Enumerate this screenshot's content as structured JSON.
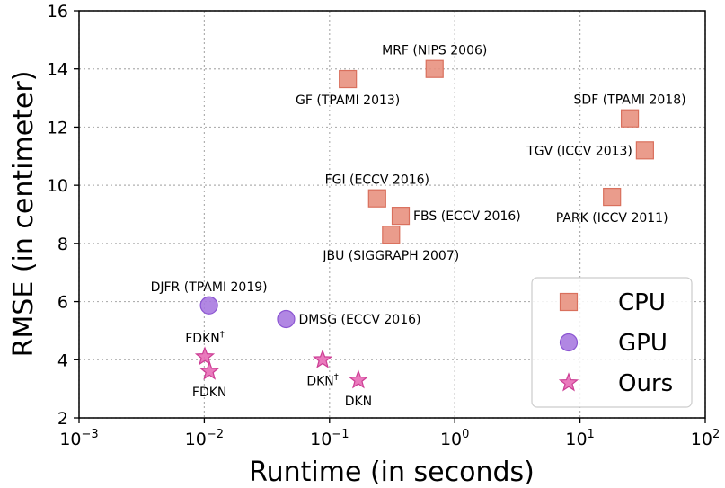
{
  "chart_data": {
    "type": "scatter",
    "title": "",
    "xlabel": "Runtime (in seconds)",
    "ylabel": "RMSE (in centimeter)",
    "xscale": "log",
    "xlim": [
      0.001,
      100
    ],
    "ylim": [
      2,
      16
    ],
    "grid": true,
    "legend_position": "bottom-right",
    "x_ticks": [
      {
        "value": 0.001,
        "base": "10",
        "exp": "−3"
      },
      {
        "value": 0.01,
        "base": "10",
        "exp": "−2"
      },
      {
        "value": 0.1,
        "base": "10",
        "exp": "−1"
      },
      {
        "value": 1,
        "base": "10",
        "exp": "0"
      },
      {
        "value": 10,
        "base": "10",
        "exp": "1"
      },
      {
        "value": 100,
        "base": "10",
        "exp": "2"
      }
    ],
    "y_ticks": [
      2,
      4,
      6,
      8,
      10,
      12,
      14,
      16
    ],
    "series": [
      {
        "name": "CPU",
        "marker": "square",
        "color": "#e8917f",
        "edge": "#d9705d",
        "points": [
          {
            "label": "MRF (NIPS 2006)",
            "x": 0.69,
            "y": 14.0,
            "label_pos": "above"
          },
          {
            "label": "GF (TPAMI 2013)",
            "x": 0.14,
            "y": 13.65,
            "label_pos": "below"
          },
          {
            "label": "SDF (TPAMI 2018)",
            "x": 25,
            "y": 12.3,
            "label_pos": "above"
          },
          {
            "label": "TGV (ICCV 2013)",
            "x": 33,
            "y": 11.2,
            "label_pos": "left"
          },
          {
            "label": "FGI (ECCV 2016)",
            "x": 0.24,
            "y": 9.55,
            "label_pos": "above"
          },
          {
            "label": "FBS (ECCV 2016)",
            "x": 0.37,
            "y": 8.95,
            "label_pos": "right"
          },
          {
            "label": "PARK (ICCV 2011)",
            "x": 18,
            "y": 9.6,
            "label_pos": "below"
          },
          {
            "label": "JBU (SIGGRAPH 2007)",
            "x": 0.31,
            "y": 8.3,
            "label_pos": "below"
          }
        ]
      },
      {
        "name": "GPU",
        "marker": "circle",
        "color": "#a97ae0",
        "edge": "#8b55d2",
        "points": [
          {
            "label": "DJFR (TPAMI 2019)",
            "x": 0.0109,
            "y": 5.87,
            "label_pos": "above"
          },
          {
            "label": "DMSG (ECCV 2016)",
            "x": 0.045,
            "y": 5.4,
            "label_pos": "right"
          }
        ]
      },
      {
        "name": "Ours",
        "marker": "star",
        "color": "#e86cb6",
        "edge": "#cc3d94",
        "points": [
          {
            "label": "FDKN",
            "sup": "†",
            "x": 0.0101,
            "y": 4.1,
            "label_pos": "above"
          },
          {
            "label": "FDKN",
            "sup": "",
            "x": 0.011,
            "y": 3.6,
            "label_pos": "below"
          },
          {
            "label": "DKN",
            "sup": "†",
            "x": 0.088,
            "y": 4.0,
            "label_pos": "below"
          },
          {
            "label": "DKN",
            "sup": "",
            "x": 0.17,
            "y": 3.3,
            "label_pos": "below"
          }
        ]
      }
    ]
  }
}
